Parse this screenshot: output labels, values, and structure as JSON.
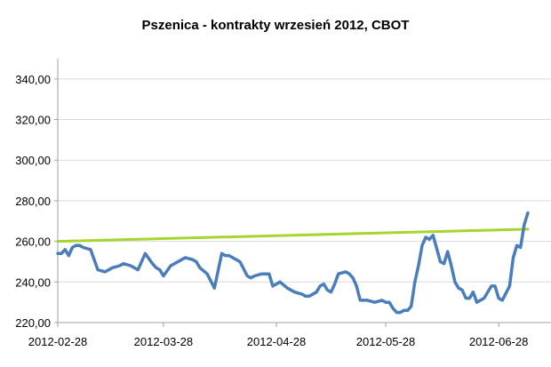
{
  "chart_data": {
    "type": "line",
    "title": "Pszenica - kontrakty wrzesień 2012, CBOT",
    "xlabel": "",
    "ylabel": "",
    "ylim": [
      220,
      350
    ],
    "y_ticks": [
      220,
      240,
      260,
      280,
      300,
      320,
      340
    ],
    "y_tick_labels": [
      "220,00",
      "240,00",
      "260,00",
      "280,00",
      "300,00",
      "320,00",
      "340,00"
    ],
    "x_range": [
      "2012-02-28",
      "2012-07-06"
    ],
    "x_ticks": [
      "2012-02-28",
      "2012-03-28",
      "2012-04-28",
      "2012-05-28",
      "2012-06-28"
    ],
    "grid": "horizontal",
    "colors": {
      "price": "#4a7ebb",
      "trend": "#a6d52f",
      "grid": "#d9d9d9",
      "axis": "#a0a0a0"
    },
    "series": [
      {
        "key": "price",
        "x": [
          "2012-02-28",
          "2012-02-29",
          "2012-03-01",
          "2012-03-02",
          "2012-03-03",
          "2012-03-04",
          "2012-03-05",
          "2012-03-06",
          "2012-03-08",
          "2012-03-10",
          "2012-03-12",
          "2012-03-14",
          "2012-03-16",
          "2012-03-17",
          "2012-03-19",
          "2012-03-21",
          "2012-03-23",
          "2012-03-25",
          "2012-03-26",
          "2012-03-27",
          "2012-03-28",
          "2012-03-30",
          "2012-04-01",
          "2012-04-02",
          "2012-04-03",
          "2012-04-05",
          "2012-04-06",
          "2012-04-07",
          "2012-04-09",
          "2012-04-11",
          "2012-04-13",
          "2012-04-14",
          "2012-04-15",
          "2012-04-16",
          "2012-04-18",
          "2012-04-20",
          "2012-04-21",
          "2012-04-22",
          "2012-04-24",
          "2012-04-26",
          "2012-04-27",
          "2012-04-28",
          "2012-04-29",
          "2012-05-01",
          "2012-05-03",
          "2012-05-05",
          "2012-05-06",
          "2012-05-07",
          "2012-05-09",
          "2012-05-10",
          "2012-05-11",
          "2012-05-12",
          "2012-05-13",
          "2012-05-14",
          "2012-05-15",
          "2012-05-17",
          "2012-05-18",
          "2012-05-19",
          "2012-05-20",
          "2012-05-21",
          "2012-05-23",
          "2012-05-25",
          "2012-05-27",
          "2012-05-28",
          "2012-05-29",
          "2012-05-30",
          "2012-05-31",
          "2012-06-01",
          "2012-06-02",
          "2012-06-03",
          "2012-06-04",
          "2012-06-05",
          "2012-06-06",
          "2012-06-07",
          "2012-06-08",
          "2012-06-09",
          "2012-06-10",
          "2012-06-12",
          "2012-06-13",
          "2012-06-14",
          "2012-06-15",
          "2012-06-16",
          "2012-06-17",
          "2012-06-18",
          "2012-06-19",
          "2012-06-20",
          "2012-06-21",
          "2012-06-22",
          "2012-06-24",
          "2012-06-26",
          "2012-06-27",
          "2012-06-28",
          "2012-06-29",
          "2012-07-01",
          "2012-07-02",
          "2012-07-03",
          "2012-07-04",
          "2012-07-05",
          "2012-07-06"
        ],
        "values": [
          254,
          254,
          256,
          253,
          257,
          258,
          258,
          257,
          256,
          246,
          245,
          247,
          248,
          249,
          248,
          246,
          254,
          249,
          247,
          246,
          243,
          248,
          250,
          251,
          252,
          251,
          250,
          247,
          244,
          237,
          254,
          253,
          253,
          252,
          250,
          243,
          242,
          243,
          244,
          244,
          238,
          239,
          240,
          237,
          235,
          234,
          233,
          233,
          235,
          238,
          239,
          236,
          235,
          239,
          244,
          245,
          244,
          242,
          238,
          231,
          231,
          230,
          231,
          230,
          230,
          227,
          225,
          225,
          226,
          226,
          228,
          240,
          248,
          258,
          262,
          261,
          263,
          250,
          249,
          255,
          248,
          240,
          237,
          236,
          232,
          232,
          235,
          230,
          232,
          238,
          238,
          232,
          231,
          238,
          252,
          258,
          257,
          268,
          274
        ]
      },
      {
        "key": "trend",
        "x": [
          "2012-02-28",
          "2012-07-06"
        ],
        "values": [
          260,
          266
        ]
      }
    ]
  }
}
